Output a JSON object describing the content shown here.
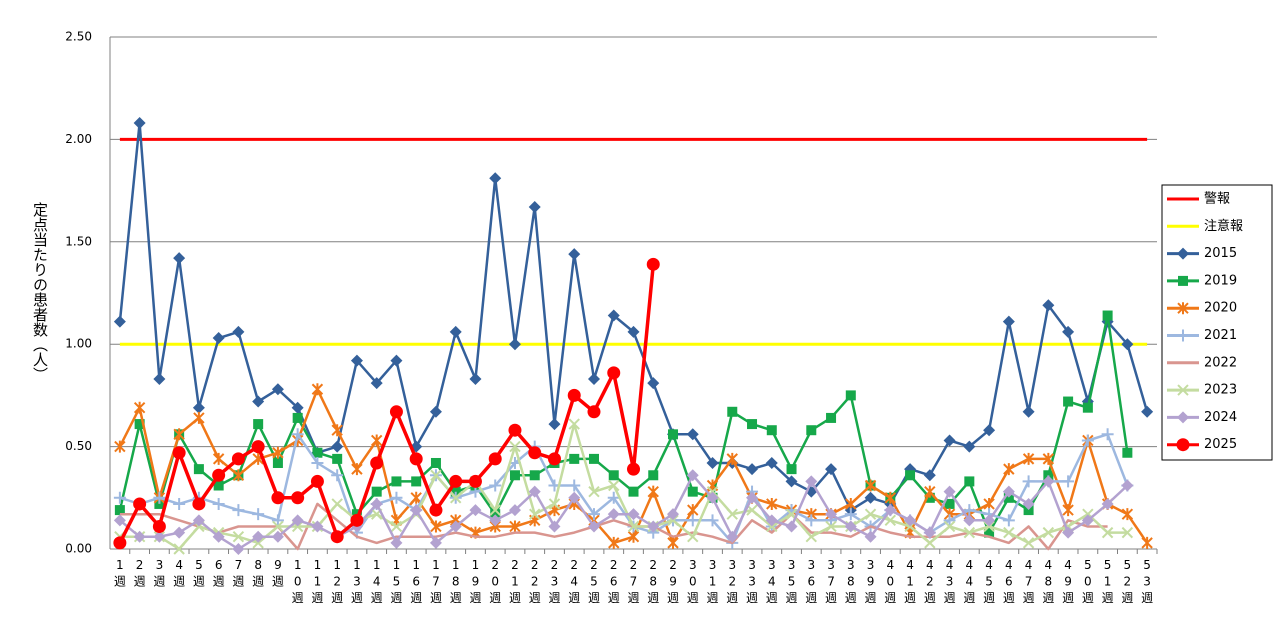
{
  "chart_data": {
    "type": "line",
    "ylabel": "定点当たりの患者数（人）",
    "categories": [
      "1週",
      "2週",
      "3週",
      "4週",
      "5週",
      "6週",
      "7週",
      "8週",
      "9週",
      "10週",
      "11週",
      "12週",
      "13週",
      "14週",
      "15週",
      "16週",
      "17週",
      "18週",
      "19週",
      "20週",
      "21週",
      "22週",
      "23週",
      "24週",
      "25週",
      "26週",
      "27週",
      "28週",
      "29週",
      "30週",
      "31週",
      "32週",
      "33週",
      "34週",
      "35週",
      "36週",
      "37週",
      "38週",
      "39週",
      "40週",
      "41週",
      "42週",
      "43週",
      "44週",
      "45週",
      "46週",
      "47週",
      "48週",
      "49週",
      "50週",
      "51週",
      "52週",
      "53週"
    ],
    "ylim": [
      0,
      2.5
    ],
    "yticks": [
      {
        "value": 0,
        "label": "0.00"
      },
      {
        "value": 0.5,
        "label": "0.50"
      },
      {
        "value": 1,
        "label": "1.00"
      },
      {
        "value": 1.5,
        "label": "1.50"
      },
      {
        "value": 2,
        "label": "2.00"
      },
      {
        "value": 2.5,
        "label": "2.50"
      }
    ],
    "grid": true,
    "legend": "right",
    "series": [
      {
        "name": "警報",
        "color": "#ff0000",
        "marker": "none",
        "values": [
          2,
          2,
          2,
          2,
          2,
          2,
          2,
          2,
          2,
          2,
          2,
          2,
          2,
          2,
          2,
          2,
          2,
          2,
          2,
          2,
          2,
          2,
          2,
          2,
          2,
          2,
          2,
          2,
          2,
          2,
          2,
          2,
          2,
          2,
          2,
          2,
          2,
          2,
          2,
          2,
          2,
          2,
          2,
          2,
          2,
          2,
          2,
          2,
          2,
          2,
          2,
          2,
          2
        ]
      },
      {
        "name": "注意報",
        "color": "#ffff00",
        "marker": "none",
        "values": [
          1,
          1,
          1,
          1,
          1,
          1,
          1,
          1,
          1,
          1,
          1,
          1,
          1,
          1,
          1,
          1,
          1,
          1,
          1,
          1,
          1,
          1,
          1,
          1,
          1,
          1,
          1,
          1,
          1,
          1,
          1,
          1,
          1,
          1,
          1,
          1,
          1,
          1,
          1,
          1,
          1,
          1,
          1,
          1,
          1,
          1,
          1,
          1,
          1,
          1,
          1,
          1,
          1
        ]
      },
      {
        "name": "2015",
        "color": "#34609a",
        "marker": "diamond",
        "values": [
          1.11,
          2.08,
          0.83,
          1.42,
          0.69,
          1.03,
          1.06,
          0.72,
          0.78,
          0.69,
          0.47,
          0.5,
          0.92,
          0.81,
          0.92,
          0.5,
          0.67,
          1.06,
          0.83,
          1.81,
          1.0,
          1.67,
          0.61,
          1.44,
          0.83,
          1.14,
          1.06,
          0.81,
          0.56,
          0.56,
          0.42,
          0.42,
          0.39,
          0.42,
          0.33,
          0.28,
          0.39,
          0.19,
          0.25,
          0.22,
          0.39,
          0.36,
          0.53,
          0.5,
          0.58,
          1.11,
          0.67,
          1.19,
          1.06,
          0.72,
          1.11,
          1.0,
          0.67
        ]
      },
      {
        "name": "2019",
        "color": "#16a84a",
        "marker": "square",
        "values": [
          0.19,
          0.61,
          0.22,
          0.56,
          0.39,
          0.31,
          0.36,
          0.61,
          0.42,
          0.64,
          0.47,
          0.44,
          0.17,
          0.28,
          0.33,
          0.33,
          0.42,
          0.28,
          0.31,
          0.17,
          0.36,
          0.36,
          0.42,
          0.44,
          0.44,
          0.36,
          0.28,
          0.36,
          0.56,
          0.28,
          0.25,
          0.67,
          0.61,
          0.58,
          0.39,
          0.58,
          0.64,
          0.75,
          0.31,
          0.25,
          0.36,
          0.25,
          0.22,
          0.33,
          0.08,
          0.25,
          0.19,
          0.36,
          0.72,
          0.69,
          1.14,
          0.47,
          null
        ]
      },
      {
        "name": "2020",
        "color": "#f07818",
        "marker": "asterisk",
        "values": [
          0.5,
          0.69,
          0.25,
          0.56,
          0.64,
          0.44,
          0.36,
          0.44,
          0.47,
          0.53,
          0.78,
          0.58,
          0.39,
          0.53,
          0.14,
          0.25,
          0.11,
          0.14,
          0.08,
          0.11,
          0.11,
          0.14,
          0.19,
          0.22,
          0.14,
          0.03,
          0.06,
          0.28,
          0.03,
          0.19,
          0.31,
          0.44,
          0.25,
          0.22,
          0.19,
          0.17,
          0.17,
          0.22,
          0.31,
          0.25,
          0.08,
          0.28,
          0.17,
          0.17,
          0.22,
          0.39,
          0.44,
          0.44,
          0.19,
          0.53,
          0.22,
          0.17,
          0.03
        ]
      },
      {
        "name": "2021",
        "color": "#9db8e0",
        "marker": "plus",
        "values": [
          0.25,
          0.22,
          0.25,
          0.22,
          0.25,
          0.22,
          0.19,
          0.17,
          0.14,
          0.56,
          0.42,
          0.36,
          0.08,
          0.22,
          0.25,
          0.19,
          0.36,
          0.25,
          0.28,
          0.31,
          0.42,
          0.5,
          0.31,
          0.31,
          0.17,
          0.25,
          0.11,
          0.08,
          0.14,
          0.14,
          0.14,
          0.03,
          0.28,
          0.11,
          0.19,
          0.14,
          0.14,
          0.17,
          0.11,
          0.19,
          0.14,
          0.08,
          0.14,
          0.19,
          0.17,
          0.14,
          0.33,
          0.33,
          0.33,
          0.53,
          0.56,
          0.31,
          null
        ]
      },
      {
        "name": "2022",
        "color": "#d9958f",
        "marker": "none",
        "values": [
          0.17,
          0.17,
          0.17,
          0.14,
          0.11,
          0.08,
          0.11,
          0.11,
          0.11,
          0,
          0.22,
          0.14,
          0.06,
          0.03,
          0.06,
          0.06,
          0.06,
          0.08,
          0.06,
          0.06,
          0.08,
          0.08,
          0.06,
          0.08,
          0.11,
          0.14,
          0.11,
          0.11,
          0.06,
          0.08,
          0.06,
          0.03,
          0.14,
          0.08,
          0.17,
          0.08,
          0.08,
          0.06,
          0.11,
          0.08,
          0.06,
          0.06,
          0.06,
          0.08,
          0.06,
          0.03,
          0.11,
          0,
          0.14,
          0.11,
          0.11,
          null,
          null
        ]
      },
      {
        "name": "2023",
        "color": "#c4dca0",
        "marker": "x",
        "values": [
          0.06,
          0.06,
          0.06,
          0,
          0.11,
          0.08,
          0.06,
          0.03,
          0.11,
          0.11,
          0.11,
          0.22,
          0.14,
          0.17,
          0.11,
          0.17,
          0.36,
          0.25,
          0.33,
          0.19,
          0.5,
          0.17,
          0.22,
          0.61,
          0.28,
          0.31,
          0.11,
          0.11,
          0.14,
          0.06,
          0.28,
          0.17,
          0.19,
          0.11,
          0.17,
          0.06,
          0.11,
          0.11,
          0.17,
          0.14,
          0.11,
          0.03,
          0.11,
          0.08,
          0.11,
          0.08,
          0.03,
          0.08,
          0.11,
          0.17,
          0.08,
          0.08,
          null
        ]
      },
      {
        "name": "2024",
        "color": "#b3a2d0",
        "marker": "diamond",
        "values": [
          0.14,
          0.06,
          0.06,
          0.08,
          0.14,
          0.06,
          0,
          0.06,
          0.06,
          0.14,
          0.11,
          0.06,
          0.11,
          0.22,
          0.03,
          0.19,
          0.03,
          0.11,
          0.19,
          0.14,
          0.19,
          0.28,
          0.11,
          0.25,
          0.11,
          0.17,
          0.17,
          0.11,
          0.17,
          0.36,
          0.25,
          0.06,
          0.25,
          0.14,
          0.11,
          0.33,
          0.17,
          0.11,
          0.06,
          0.19,
          0.14,
          0.08,
          0.28,
          0.14,
          0.14,
          0.28,
          0.22,
          0.33,
          0.08,
          0.14,
          0.22,
          0.31,
          null
        ]
      },
      {
        "name": "2025",
        "color": "#ff0000",
        "marker": "circle",
        "values": [
          0.03,
          0.22,
          0.11,
          0.47,
          0.22,
          0.36,
          0.44,
          0.5,
          0.25,
          0.25,
          0.33,
          0.06,
          0.14,
          0.42,
          0.67,
          0.44,
          0.19,
          0.33,
          0.33,
          0.44,
          0.58,
          0.47,
          0.44,
          0.75,
          0.67,
          0.86,
          0.39,
          1.39,
          null,
          null,
          null,
          null,
          null,
          null,
          null,
          null,
          null,
          null,
          null,
          null,
          null,
          null,
          null,
          null,
          null,
          null,
          null,
          null,
          null,
          null,
          null,
          null,
          null
        ]
      }
    ]
  }
}
